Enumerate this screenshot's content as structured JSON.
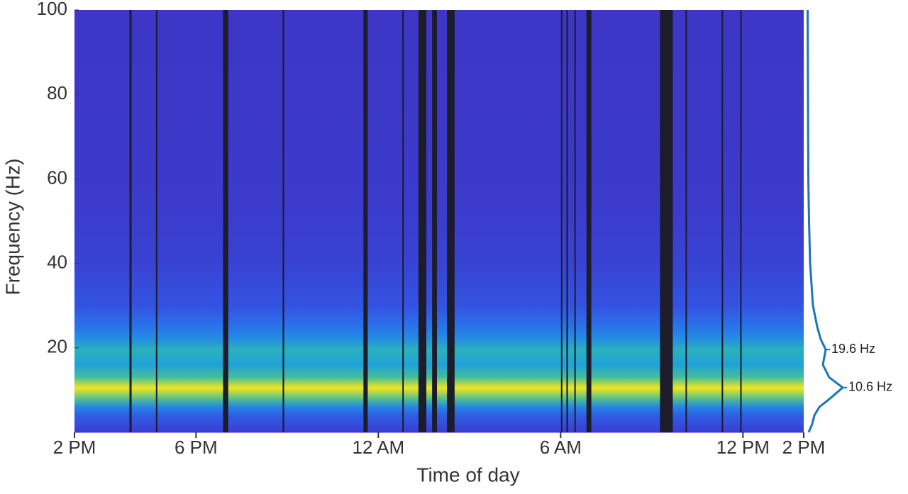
{
  "chart_data": {
    "type": "spectrogram",
    "xlabel": "Time of day",
    "ylabel": "Frequency (Hz)",
    "xlim": [
      0,
      24
    ],
    "xticks": [
      {
        "value": 0,
        "label": "2 PM"
      },
      {
        "value": 4,
        "label": "6 PM"
      },
      {
        "value": 10,
        "label": "12 AM"
      },
      {
        "value": 16,
        "label": "6 AM"
      },
      {
        "value": 22,
        "label": "12 PM"
      },
      {
        "value": 24,
        "label": "2 PM"
      }
    ],
    "ylim": [
      0,
      100
    ],
    "yticks": [
      20,
      40,
      60,
      80,
      100
    ],
    "gaps": [
      [
        1.81,
        1.88
      ],
      [
        2.68,
        2.72
      ],
      [
        4.89,
        5.06
      ],
      [
        6.85,
        6.9
      ],
      [
        9.51,
        9.65
      ],
      [
        10.79,
        10.83
      ],
      [
        11.32,
        11.58
      ],
      [
        11.77,
        11.93
      ],
      [
        12.26,
        12.51
      ],
      [
        16.01,
        16.05
      ],
      [
        16.19,
        16.24
      ],
      [
        16.45,
        16.49
      ],
      [
        16.85,
        17.01
      ],
      [
        19.27,
        19.69
      ],
      [
        20.11,
        20.15
      ],
      [
        21.3,
        21.34
      ],
      [
        21.91,
        21.95
      ]
    ],
    "gap_color": "#1c1c2a",
    "spectrum": {
      "color": "#1a75bb",
      "frequency": [
        0,
        2,
        4,
        6,
        8,
        10.6,
        13,
        16,
        19.6,
        22,
        25,
        30,
        40,
        50,
        60,
        80,
        100
      ],
      "power": [
        0.04,
        0.14,
        0.2,
        0.34,
        0.64,
        1,
        0.62,
        0.44,
        0.52,
        0.38,
        0.28,
        0.16,
        0.08,
        0.05,
        0.03,
        0.02,
        0.01
      ]
    },
    "annotations": [
      {
        "frequency": 19.6,
        "label": "19.6 Hz"
      },
      {
        "frequency": 10.6,
        "label": "10.6 Hz"
      }
    ]
  }
}
